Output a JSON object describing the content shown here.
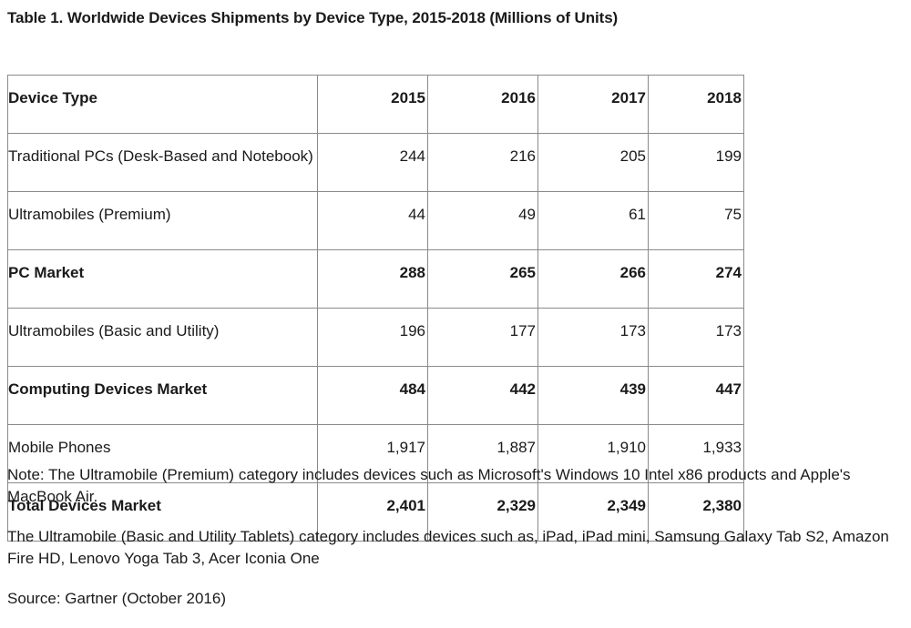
{
  "title": "Table 1. Worldwide Devices Shipments by Device Type, 2015-2018 (Millions of Units)",
  "table": {
    "headers": [
      "Device Type",
      "2015",
      "2016",
      "2017",
      "2018"
    ],
    "rows": [
      {
        "label": "Traditional PCs (Desk-Based and Notebook)",
        "values": [
          "244",
          "216",
          "205",
          "199"
        ],
        "bold": false
      },
      {
        "label": "Ultramobiles (Premium)",
        "values": [
          "44",
          "49",
          "61",
          "75"
        ],
        "bold": false
      },
      {
        "label": "PC Market",
        "values": [
          "288",
          "265",
          "266",
          "274"
        ],
        "bold": true
      },
      {
        "label": "Ultramobiles (Basic and Utility)",
        "values": [
          "196",
          "177",
          "173",
          "173"
        ],
        "bold": false
      },
      {
        "label": "Computing Devices Market",
        "values": [
          "484",
          "442",
          "439",
          "447"
        ],
        "bold": true
      },
      {
        "label": "Mobile Phones",
        "values": [
          "1,917",
          "1,887",
          "1,910",
          "1,933"
        ],
        "bold": false
      },
      {
        "label": "Total Devices Market",
        "values": [
          "2,401",
          "2,329",
          "2,349",
          "2,380"
        ],
        "bold": true
      }
    ]
  },
  "notes": {
    "note1": "Note: The Ultramobile (Premium) category includes devices such as Microsoft's Windows 10 Intel x86 products and Apple's MacBook Air.",
    "note2": "The Ultramobile (Basic and Utility Tablets) category includes devices such as, iPad, iPad mini, Samsung Galaxy Tab S2, Amazon Fire HD, Lenovo Yoga Tab 3, Acer Iconia One",
    "source": "Source: Gartner (October 2016)"
  }
}
